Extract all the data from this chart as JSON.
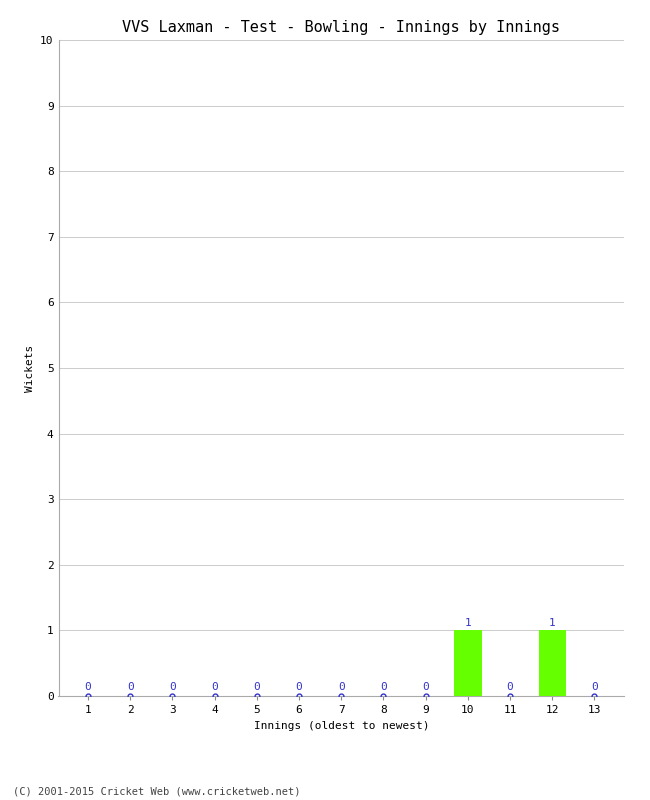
{
  "title": "VVS Laxman - Test - Bowling - Innings by Innings",
  "xlabel": "Innings (oldest to newest)",
  "ylabel": "Wickets",
  "innings": [
    1,
    2,
    3,
    4,
    5,
    6,
    7,
    8,
    9,
    10,
    11,
    12,
    13
  ],
  "wickets": [
    0,
    0,
    0,
    0,
    0,
    0,
    0,
    0,
    0,
    1,
    0,
    1,
    0
  ],
  "bar_color": "#66ff00",
  "dot_color": "#3333cc",
  "ylim": [
    0,
    10
  ],
  "yticks": [
    0,
    1,
    2,
    3,
    4,
    5,
    6,
    7,
    8,
    9,
    10
  ],
  "background_color": "#ffffff",
  "grid_color": "#cccccc",
  "footer": "(C) 2001-2015 Cricket Web (www.cricketweb.net)",
  "title_fontsize": 11,
  "label_fontsize": 8,
  "tick_fontsize": 8,
  "footer_fontsize": 7.5
}
